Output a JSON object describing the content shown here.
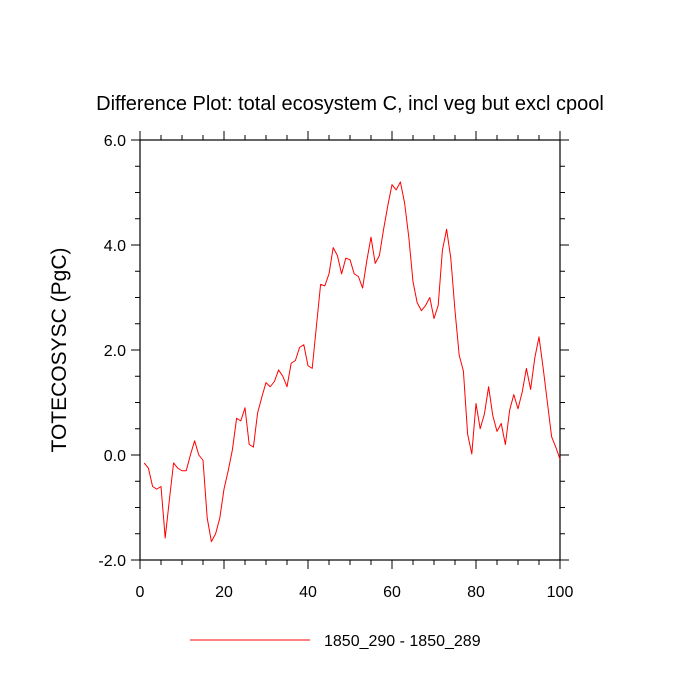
{
  "chart_data": {
    "type": "line",
    "title": "Difference Plot: total ecosystem C, incl veg but excl cpool",
    "ylabel": "TOTECOSYSC  (PgC)",
    "xlabel": "",
    "xlim": [
      0,
      100
    ],
    "ylim": [
      -2,
      6
    ],
    "x_ticks": [
      0,
      20,
      40,
      60,
      80,
      100
    ],
    "x_tick_labels": [
      "0",
      "20",
      "40",
      "60",
      "80",
      "100"
    ],
    "y_ticks": [
      -2,
      0,
      2,
      4,
      6
    ],
    "y_tick_labels": [
      "-2.0",
      "0.0",
      "2.0",
      "4.0",
      "6.0"
    ],
    "grid": false,
    "legend_position": "bottom",
    "series": [
      {
        "name": "1850_290 - 1850_289",
        "color": "#ff0000",
        "x": [
          1,
          2,
          3,
          4,
          5,
          6,
          7,
          8,
          9,
          10,
          11,
          12,
          13,
          14,
          15,
          16,
          17,
          18,
          19,
          20,
          21,
          22,
          23,
          24,
          25,
          26,
          27,
          28,
          29,
          30,
          31,
          32,
          33,
          34,
          35,
          36,
          37,
          38,
          39,
          40,
          41,
          42,
          43,
          44,
          45,
          46,
          47,
          48,
          49,
          50,
          51,
          52,
          53,
          54,
          55,
          56,
          57,
          58,
          59,
          60,
          61,
          62,
          63,
          64,
          65,
          66,
          67,
          68,
          69,
          70,
          71,
          72,
          73,
          74,
          75,
          76,
          77,
          78,
          79,
          80,
          81,
          82,
          83,
          84,
          85,
          86,
          87,
          88,
          89,
          90,
          91,
          92,
          93,
          94,
          95,
          96,
          97,
          98,
          99,
          100
        ],
        "values": [
          -0.15,
          -0.25,
          -0.6,
          -0.65,
          -0.6,
          -1.58,
          -0.85,
          -0.15,
          -0.25,
          -0.3,
          -0.3,
          0.0,
          0.27,
          0.0,
          -0.1,
          -1.2,
          -1.65,
          -1.5,
          -1.2,
          -0.65,
          -0.3,
          0.1,
          0.7,
          0.65,
          0.9,
          0.2,
          0.15,
          0.8,
          1.1,
          1.38,
          1.3,
          1.4,
          1.62,
          1.5,
          1.3,
          1.75,
          1.8,
          2.05,
          2.1,
          1.7,
          1.65,
          2.45,
          3.25,
          3.22,
          3.45,
          3.95,
          3.8,
          3.45,
          3.75,
          3.72,
          3.45,
          3.4,
          3.18,
          3.7,
          4.15,
          3.65,
          3.8,
          4.3,
          4.75,
          5.15,
          5.05,
          5.2,
          4.8,
          4.15,
          3.3,
          2.9,
          2.75,
          2.85,
          3.0,
          2.6,
          2.85,
          3.9,
          4.3,
          3.75,
          2.75,
          1.9,
          1.6,
          0.4,
          0.02,
          0.98,
          0.5,
          0.78,
          1.3,
          0.75,
          0.45,
          0.6,
          0.2,
          0.85,
          1.15,
          0.88,
          1.2,
          1.65,
          1.25,
          1.85,
          2.25,
          1.65,
          1.0,
          0.35,
          0.15,
          -0.08
        ]
      }
    ]
  }
}
